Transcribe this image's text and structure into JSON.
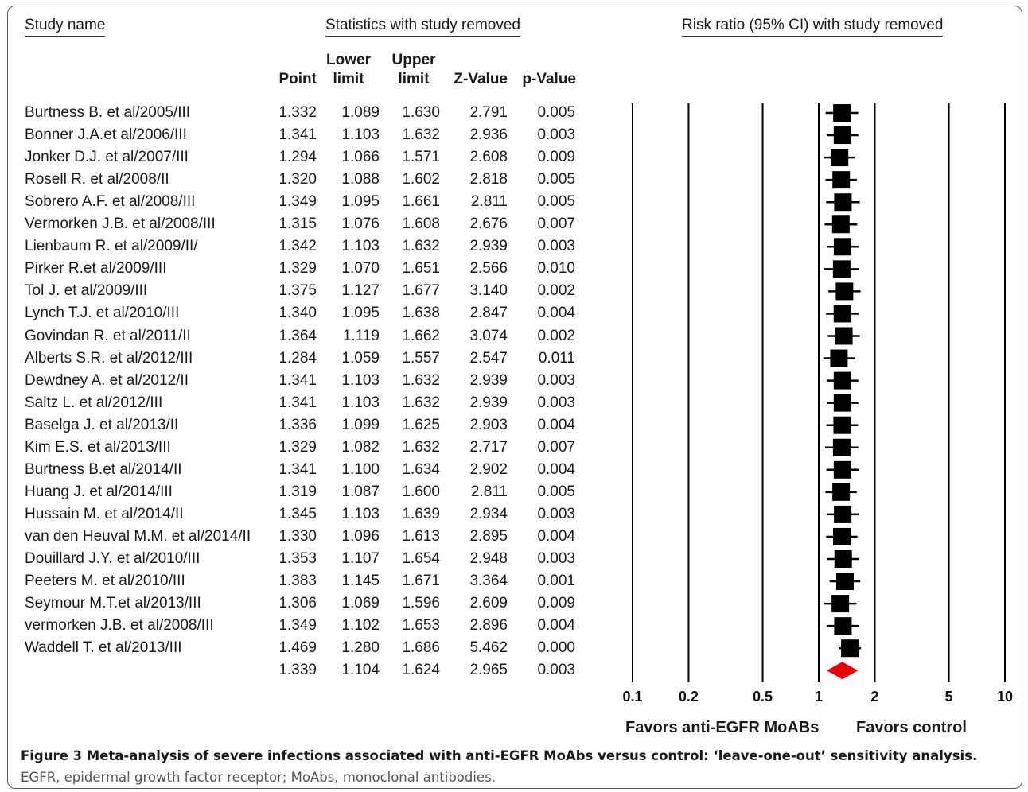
{
  "headers": {
    "study_name": "Study name",
    "statistics": "Statistics with study removed",
    "risk_ratio": "Risk ratio (95% CI) with study removed"
  },
  "columns": {
    "point": "Point",
    "lower": [
      "Lower",
      "limit"
    ],
    "upper": [
      "Upper",
      "limit"
    ],
    "z": "Z-Value",
    "p": "p-Value"
  },
  "favors": {
    "left": "Favors anti-EGFR MoABs",
    "right": "Favors control"
  },
  "caption": {
    "bold": "Figure 3 Meta-analysis of severe infections associated with anti-EGFR MoAbs versus control: ‘leave-one-out’ sensitivity analysis.",
    "rest": " EGFR, epidermal growth factor receptor; MoAbs, monoclonal antibodies."
  },
  "chart_data": {
    "type": "forest",
    "scale": "log",
    "x_ticks": [
      0.1,
      0.2,
      0.5,
      1,
      2,
      5,
      10
    ],
    "x_tick_labels": [
      "0.1",
      "0.2",
      "0.5",
      "1",
      "2",
      "5",
      "10"
    ],
    "xlim": [
      0.1,
      10
    ],
    "marker_color": "#000000",
    "summary_color": "#e8000b",
    "rows": [
      {
        "study": "Burtness B. et al/2005/III",
        "point": "1.332",
        "lower": "1.089",
        "upper": "1.630",
        "z": "2.791",
        "p": "0.005"
      },
      {
        "study": "Bonner J.A.et al/2006/III",
        "point": "1.341",
        "lower": "1.103",
        "upper": "1.632",
        "z": "2.936",
        "p": "0.003"
      },
      {
        "study": "Jonker D.J. et al/2007/III",
        "point": "1.294",
        "lower": "1.066",
        "upper": "1.571",
        "z": "2.608",
        "p": "0.009"
      },
      {
        "study": "Rosell R. et al/2008/II",
        "point": "1.320",
        "lower": "1.088",
        "upper": "1.602",
        "z": "2.818",
        "p": "0.005"
      },
      {
        "study": "Sobrero A.F. et al/2008/III",
        "point": "1.349",
        "lower": "1.095",
        "upper": "1.661",
        "z": "2.811",
        "p": "0.005"
      },
      {
        "study": "Vermorken J.B. et al/2008/III",
        "point": "1.315",
        "lower": "1.076",
        "upper": "1.608",
        "z": "2.676",
        "p": "0.007"
      },
      {
        "study": "Lienbaum R. et al/2009/II/",
        "point": "1.342",
        "lower": "1.103",
        "upper": "1.632",
        "z": "2.939",
        "p": "0.003"
      },
      {
        "study": "Pirker R.et al/2009/III",
        "point": "1.329",
        "lower": "1.070",
        "upper": "1.651",
        "z": "2.566",
        "p": "0.010"
      },
      {
        "study": "Tol J. et al/2009/III",
        "point": "1.375",
        "lower": "1.127",
        "upper": "1.677",
        "z": "3.140",
        "p": "0.002"
      },
      {
        "study": "Lynch T.J. et al/2010/III",
        "point": "1.340",
        "lower": "1.095",
        "upper": "1.638",
        "z": "2.847",
        "p": "0.004"
      },
      {
        "study": "Govindan R. et al/2011/II",
        "point": "1.364",
        "lower": "1.119",
        "upper": "1.662",
        "z": "3.074",
        "p": "0.002"
      },
      {
        "study": "Alberts S.R. et al/2012/III",
        "point": "1.284",
        "lower": "1.059",
        "upper": "1.557",
        "z": "2.547",
        "p": "0.011"
      },
      {
        "study": "Dewdney A. et al/2012/II",
        "point": "1.341",
        "lower": "1.103",
        "upper": "1.632",
        "z": "2.939",
        "p": "0.003"
      },
      {
        "study": "Saltz L. et al/2012/III",
        "point": "1.341",
        "lower": "1.103",
        "upper": "1.632",
        "z": "2.939",
        "p": "0.003"
      },
      {
        "study": "Baselga J. et al/2013/II",
        "point": "1.336",
        "lower": "1.099",
        "upper": "1.625",
        "z": "2.903",
        "p": "0.004"
      },
      {
        "study": "Kim E.S. et al/2013/III",
        "point": "1.329",
        "lower": "1.082",
        "upper": "1.632",
        "z": "2.717",
        "p": "0.007"
      },
      {
        "study": "Burtness B.et al/2014/II",
        "point": "1.341",
        "lower": "1.100",
        "upper": "1.634",
        "z": "2.902",
        "p": "0.004"
      },
      {
        "study": "Huang J. et al/2014/III",
        "point": "1.319",
        "lower": "1.087",
        "upper": "1.600",
        "z": "2.811",
        "p": "0.005"
      },
      {
        "study": "Hussain M. et al/2014/II",
        "point": "1.345",
        "lower": "1.103",
        "upper": "1.639",
        "z": "2.934",
        "p": "0.003"
      },
      {
        "study": "van den Heuval M.M. et al/2014/II",
        "point": "1.330",
        "lower": "1.096",
        "upper": "1.613",
        "z": "2.895",
        "p": "0.004"
      },
      {
        "study": "Douillard J.Y. et al/2010/III",
        "point": "1.353",
        "lower": "1.107",
        "upper": "1.654",
        "z": "2.948",
        "p": "0.003"
      },
      {
        "study": "Peeters M. et al/2010/III",
        "point": "1.383",
        "lower": "1.145",
        "upper": "1.671",
        "z": "3.364",
        "p": "0.001"
      },
      {
        "study": "Seymour M.T.et al/2013/III",
        "point": "1.306",
        "lower": "1.069",
        "upper": "1.596",
        "z": "2.609",
        "p": "0.009"
      },
      {
        "study": "vermorken J.B. et al/2008/III",
        "point": "1.349",
        "lower": "1.102",
        "upper": "1.653",
        "z": "2.896",
        "p": "0.004"
      },
      {
        "study": "Waddell T. et al/2013/III",
        "point": "1.469",
        "lower": "1.280",
        "upper": "1.686",
        "z": "5.462",
        "p": "0.000"
      }
    ],
    "summary": {
      "point": "1.339",
      "lower": "1.104",
      "upper": "1.624",
      "z": "2.965",
      "p": "0.003"
    }
  }
}
